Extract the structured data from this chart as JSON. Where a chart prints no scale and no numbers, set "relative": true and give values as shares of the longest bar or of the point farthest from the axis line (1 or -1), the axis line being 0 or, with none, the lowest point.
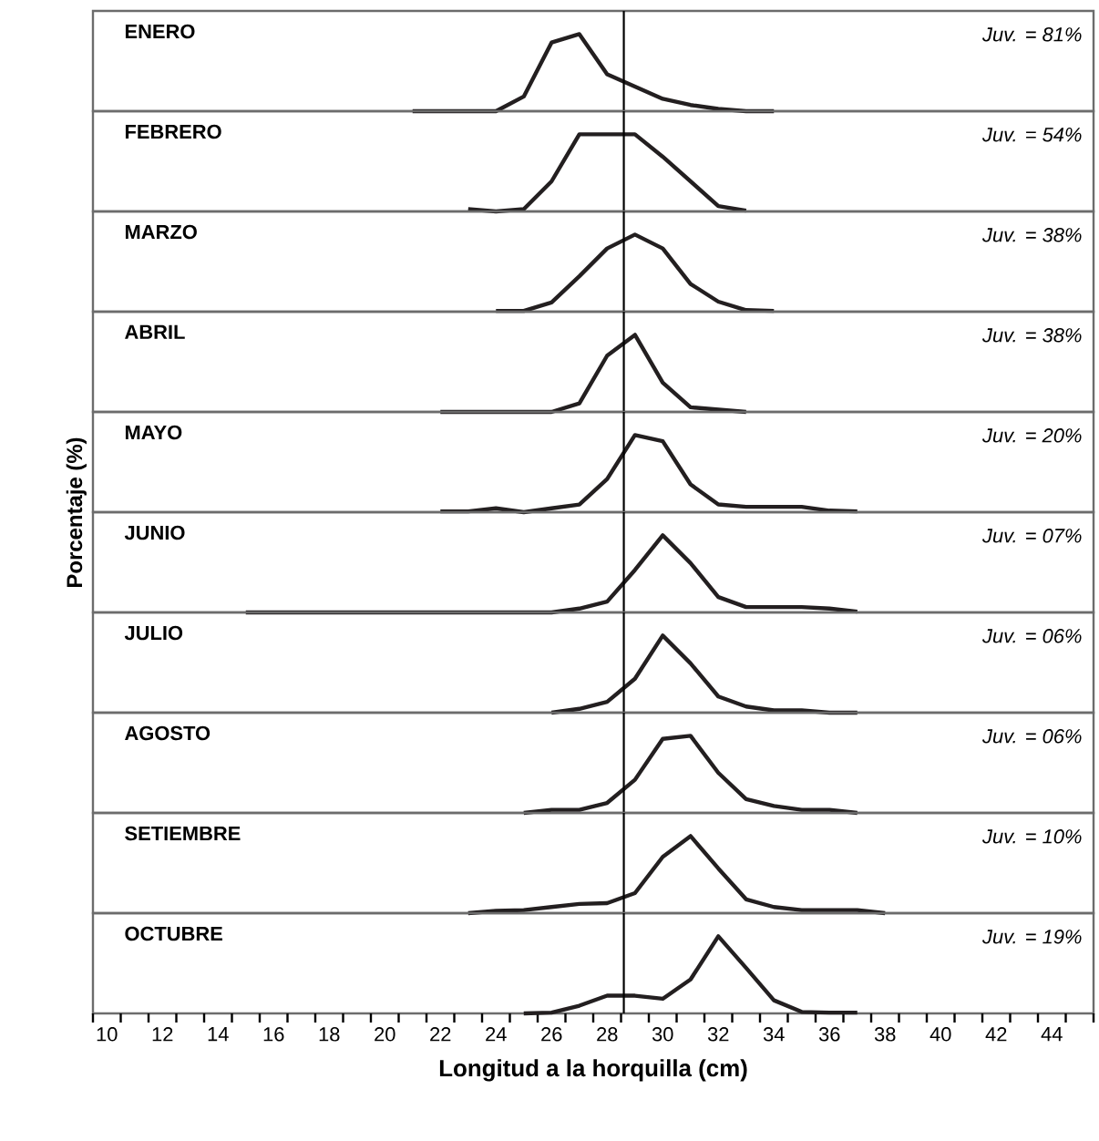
{
  "chart_data": [
    {
      "type": "line",
      "title": "ENERO",
      "annotations": [
        "Juv. = 81%"
      ],
      "relative": true,
      "color": "#231f20",
      "xlim": [
        9.5,
        45.5
      ],
      "tick_labels": false,
      "ref_lines": [
        {
          "axis": "x",
          "value": 28.6
        }
      ],
      "x": [
        21,
        22,
        23,
        24,
        25,
        26,
        27,
        28,
        29,
        30,
        31,
        32,
        33,
        34
      ],
      "values": [
        0,
        0,
        0,
        0,
        0.19,
        0.89,
        1,
        0.48,
        0.32,
        0.16,
        0.08,
        0.03,
        0,
        0
      ]
    },
    {
      "type": "line",
      "title": "FEBRERO",
      "annotations": [
        "Juv. = 54%"
      ],
      "relative": true,
      "color": "#231f20",
      "xlim": [
        9.5,
        45.5
      ],
      "tick_labels": false,
      "ref_lines": [
        {
          "axis": "x",
          "value": 28.6
        }
      ],
      "x": [
        23,
        24,
        25,
        26,
        27,
        28,
        29,
        30,
        31,
        32,
        33
      ],
      "values": [
        0.03,
        0,
        0.03,
        0.39,
        1,
        1,
        1,
        0.71,
        0.39,
        0.07,
        0.01
      ]
    },
    {
      "type": "line",
      "title": "MARZO",
      "annotations": [
        "Juv. = 38%"
      ],
      "relative": true,
      "color": "#231f20",
      "xlim": [
        9.5,
        45.5
      ],
      "tick_labels": false,
      "ref_lines": [
        {
          "axis": "x",
          "value": 28.6
        }
      ],
      "x": [
        24,
        25,
        26,
        27,
        28,
        29,
        30,
        31,
        32,
        33,
        34
      ],
      "values": [
        0.01,
        0.01,
        0.12,
        0.46,
        0.82,
        1,
        0.82,
        0.36,
        0.13,
        0.02,
        0.01
      ]
    },
    {
      "type": "line",
      "title": "ABRIL",
      "annotations": [
        "Juv. = 38%"
      ],
      "relative": true,
      "color": "#231f20",
      "xlim": [
        9.5,
        45.5
      ],
      "tick_labels": false,
      "ref_lines": [
        {
          "axis": "x",
          "value": 28.6
        }
      ],
      "x": [
        22,
        23,
        24,
        25,
        26,
        27,
        28,
        29,
        30,
        31,
        32,
        33
      ],
      "values": [
        0,
        0,
        0,
        0,
        0,
        0.11,
        0.73,
        1,
        0.38,
        0.06,
        0.03,
        0
      ]
    },
    {
      "type": "line",
      "title": "MAYO",
      "annotations": [
        "Juv. = 20%"
      ],
      "relative": true,
      "color": "#231f20",
      "xlim": [
        9.5,
        45.5
      ],
      "tick_labels": false,
      "ref_lines": [
        {
          "axis": "x",
          "value": 28.6
        }
      ],
      "x": [
        22,
        23,
        24,
        25,
        26,
        27,
        28,
        29,
        30,
        31,
        32,
        33,
        34,
        35,
        36,
        37
      ],
      "values": [
        0.01,
        0.01,
        0.05,
        0,
        0.05,
        0.1,
        0.43,
        1,
        0.92,
        0.36,
        0.1,
        0.07,
        0.07,
        0.07,
        0.02,
        0.01
      ]
    },
    {
      "type": "line",
      "title": "JUNIO",
      "ylabel": "Porcentaje (%)",
      "annotations": [
        "Juv. = 07%"
      ],
      "relative": true,
      "color": "#231f20",
      "xlim": [
        9.5,
        45.5
      ],
      "tick_labels": false,
      "ref_lines": [
        {
          "axis": "x",
          "value": 28.6
        }
      ],
      "x": [
        15,
        16,
        17,
        18,
        19,
        20,
        21,
        22,
        23,
        24,
        25,
        26,
        27,
        28,
        29,
        30,
        31,
        32,
        33,
        34,
        35,
        36,
        37
      ],
      "values": [
        0,
        0,
        0,
        0,
        0,
        0,
        0,
        0,
        0,
        0,
        0,
        0,
        0.05,
        0.14,
        0.55,
        1,
        0.64,
        0.2,
        0.07,
        0.07,
        0.07,
        0.05,
        0.01
      ]
    },
    {
      "type": "line",
      "title": "JULIO",
      "annotations": [
        "Juv. = 06%"
      ],
      "relative": true,
      "color": "#231f20",
      "xlim": [
        9.5,
        45.5
      ],
      "tick_labels": false,
      "ref_lines": [
        {
          "axis": "x",
          "value": 28.6
        }
      ],
      "x": [
        26,
        27,
        28,
        29,
        30,
        31,
        32,
        33,
        34,
        35,
        36,
        37
      ],
      "values": [
        0,
        0.05,
        0.14,
        0.44,
        1,
        0.64,
        0.21,
        0.08,
        0.03,
        0.03,
        0,
        0
      ]
    },
    {
      "type": "line",
      "title": "AGOSTO",
      "annotations": [
        "Juv. = 06%"
      ],
      "relative": true,
      "color": "#231f20",
      "xlim": [
        9.5,
        45.5
      ],
      "tick_labels": false,
      "ref_lines": [
        {
          "axis": "x",
          "value": 28.6
        }
      ],
      "x": [
        25,
        26,
        27,
        28,
        29,
        30,
        31,
        32,
        33,
        34,
        35,
        36,
        37
      ],
      "values": [
        0,
        0.04,
        0.04,
        0.13,
        0.43,
        0.96,
        1,
        0.52,
        0.18,
        0.09,
        0.04,
        0.04,
        0
      ]
    },
    {
      "type": "line",
      "title": "SETIEMBRE",
      "annotations": [
        "Juv. = 10%"
      ],
      "relative": true,
      "color": "#231f20",
      "xlim": [
        9.5,
        45.5
      ],
      "tick_labels": false,
      "ref_lines": [
        {
          "axis": "x",
          "value": 28.6
        }
      ],
      "x": [
        23,
        24,
        25,
        26,
        27,
        28,
        29,
        30,
        31,
        32,
        33,
        34,
        35,
        36,
        37,
        38
      ],
      "values": [
        0,
        0.03,
        0.04,
        0.08,
        0.12,
        0.13,
        0.26,
        0.73,
        1,
        0.58,
        0.18,
        0.08,
        0.04,
        0.04,
        0.04,
        0
      ]
    },
    {
      "type": "line",
      "title": "OCTUBRE",
      "xlabel": "Longitud a la horquilla (cm)",
      "annotations": [
        "Juv. = 19%"
      ],
      "relative": true,
      "color": "#231f20",
      "xlim": [
        9.5,
        45.5
      ],
      "tick_labels": "x",
      "ref_lines": [
        {
          "axis": "x",
          "value": 28.6
        }
      ],
      "x": [
        25,
        26,
        27,
        28,
        29,
        30,
        31,
        32,
        33,
        34,
        35,
        36,
        37
      ],
      "values": [
        0,
        0.01,
        0.1,
        0.23,
        0.23,
        0.19,
        0.44,
        1,
        0.59,
        0.17,
        0.02,
        0.01,
        0.01
      ],
      "xticks": [
        10,
        12,
        14,
        16,
        18,
        20,
        22,
        24,
        26,
        28,
        30,
        32,
        34,
        36,
        38,
        40,
        42,
        44,
        {
          "value": 9.5,
          "label": null
        },
        {
          "value": 10.5,
          "label": null
        },
        {
          "value": 11.5,
          "label": null
        },
        {
          "value": 12.5,
          "label": null
        },
        {
          "value": 13.5,
          "label": null
        },
        {
          "value": 14.5,
          "label": null
        },
        {
          "value": 15.5,
          "label": null
        },
        {
          "value": 16.5,
          "label": null
        },
        {
          "value": 17.5,
          "label": null
        },
        {
          "value": 18.5,
          "label": null
        },
        {
          "value": 19.5,
          "label": null
        },
        {
          "value": 20.5,
          "label": null
        },
        {
          "value": 21.5,
          "label": null
        },
        {
          "value": 22.5,
          "label": null
        },
        {
          "value": 23.5,
          "label": null
        },
        {
          "value": 24.5,
          "label": null
        },
        {
          "value": 25.5,
          "label": null
        },
        {
          "value": 26.5,
          "label": null
        },
        {
          "value": 27.5,
          "label": null
        },
        {
          "value": 28.5,
          "label": null
        },
        {
          "value": 29.5,
          "label": null
        },
        {
          "value": 30.5,
          "label": null
        },
        {
          "value": 31.5,
          "label": null
        },
        {
          "value": 32.5,
          "label": null
        },
        {
          "value": 33.5,
          "label": null
        },
        {
          "value": 34.5,
          "label": null
        },
        {
          "value": 35.5,
          "label": null
        },
        {
          "value": 36.5,
          "label": null
        },
        {
          "value": 37.5,
          "label": null
        },
        {
          "value": 38.5,
          "label": null
        },
        {
          "value": 39.5,
          "label": null
        },
        {
          "value": 40.5,
          "label": null
        },
        {
          "value": 41.5,
          "label": null
        },
        {
          "value": 42.5,
          "label": null
        },
        {
          "value": 43.5,
          "label": null
        },
        {
          "value": 44.5,
          "label": null
        },
        {
          "value": 45.5,
          "label": null
        }
      ]
    }
  ]
}
